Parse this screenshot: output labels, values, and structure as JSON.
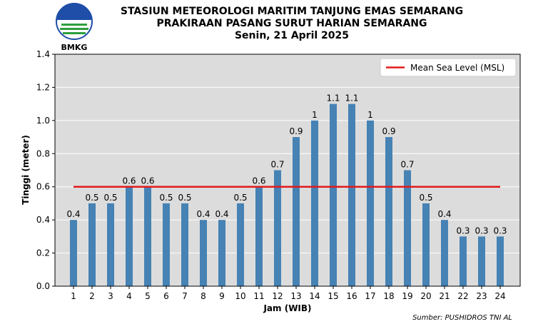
{
  "header": {
    "title_line1": "STASIUN METEOROLOGI MARITIM TANJUNG EMAS SEMARANG",
    "title_line2": "PRAKIRAAN PASANG SURUT HARIAN SEMARANG",
    "title_line3": "Senin, 21 April 2025"
  },
  "logo": {
    "text": "BMKG"
  },
  "source": "Sumber: PUSHIDROS TNI AL",
  "colors": {
    "bar": "#4682b4",
    "msl": "#e31a1c",
    "plot_bg": "#dcdcdc",
    "grid": "#ffffff"
  },
  "chart_data": {
    "type": "bar",
    "categories": [
      "1",
      "2",
      "3",
      "4",
      "5",
      "6",
      "7",
      "8",
      "9",
      "10",
      "11",
      "12",
      "13",
      "14",
      "15",
      "16",
      "17",
      "18",
      "19",
      "20",
      "21",
      "22",
      "23",
      "24"
    ],
    "values": [
      0.4,
      0.5,
      0.5,
      0.6,
      0.6,
      0.5,
      0.5,
      0.4,
      0.4,
      0.5,
      0.6,
      0.7,
      0.9,
      1.0,
      1.1,
      1.1,
      1.0,
      0.9,
      0.7,
      0.5,
      0.4,
      0.3,
      0.3,
      0.3
    ],
    "data_labels": [
      "0.4",
      "0.5",
      "0.5",
      "0.6",
      "0.6",
      "0.5",
      "0.5",
      "0.4",
      "0.4",
      "0.5",
      "0.6",
      "0.7",
      "0.9",
      "1",
      "1.1",
      "1.1",
      "1",
      "0.9",
      "0.7",
      "0.5",
      "0.4",
      "0.3",
      "0.3",
      "0.3"
    ],
    "xlabel": "Jam (WIB)",
    "ylabel": "Tinggi (meter)",
    "ylim": [
      0,
      1.4
    ],
    "yticks": [
      "0.0",
      "0.2",
      "0.4",
      "0.6",
      "0.8",
      "1.0",
      "1.2",
      "1.4"
    ],
    "reference_line": {
      "name": "Mean Sea Level (MSL)",
      "value": 0.6
    },
    "legend_position": "top-right",
    "grid": true
  }
}
